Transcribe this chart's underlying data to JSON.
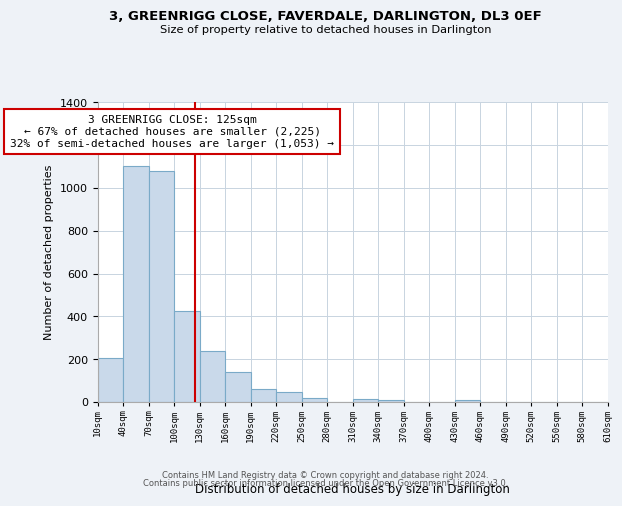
{
  "title": "3, GREENRIGG CLOSE, FAVERDALE, DARLINGTON, DL3 0EF",
  "subtitle": "Size of property relative to detached houses in Darlington",
  "xlabel": "Distribution of detached houses by size in Darlington",
  "ylabel": "Number of detached properties",
  "bar_color": "#c9d9ea",
  "bar_edge_color": "#7aaac8",
  "vline_x": 125,
  "vline_color": "#cc0000",
  "annotation_line1": "3 GREENRIGG CLOSE: 125sqm",
  "annotation_line2": "← 67% of detached houses are smaller (2,225)",
  "annotation_line3": "32% of semi-detached houses are larger (1,053) →",
  "annotation_box_color": "#ffffff",
  "annotation_border_color": "#cc0000",
  "bins": [
    10,
    40,
    70,
    100,
    130,
    160,
    190,
    220,
    250,
    280,
    310,
    340,
    370,
    400,
    430,
    460,
    490,
    520,
    550,
    580,
    610
  ],
  "bar_heights": [
    205,
    1100,
    1080,
    425,
    240,
    140,
    60,
    45,
    20,
    0,
    15,
    10,
    0,
    0,
    10,
    0,
    0,
    0,
    0,
    0
  ],
  "ylim": [
    0,
    1400
  ],
  "yticks": [
    0,
    200,
    400,
    600,
    800,
    1000,
    1200,
    1400
  ],
  "xtick_labels": [
    "10sqm",
    "40sqm",
    "70sqm",
    "100sqm",
    "130sqm",
    "160sqm",
    "190sqm",
    "220sqm",
    "250sqm",
    "280sqm",
    "310sqm",
    "340sqm",
    "370sqm",
    "400sqm",
    "430sqm",
    "460sqm",
    "490sqm",
    "520sqm",
    "550sqm",
    "580sqm",
    "610sqm"
  ],
  "footer_line1": "Contains HM Land Registry data © Crown copyright and database right 2024.",
  "footer_line2": "Contains public sector information licensed under the Open Government Licence v3.0.",
  "background_color": "#eef2f7",
  "plot_bg_color": "#ffffff",
  "grid_color": "#c8d4e0"
}
